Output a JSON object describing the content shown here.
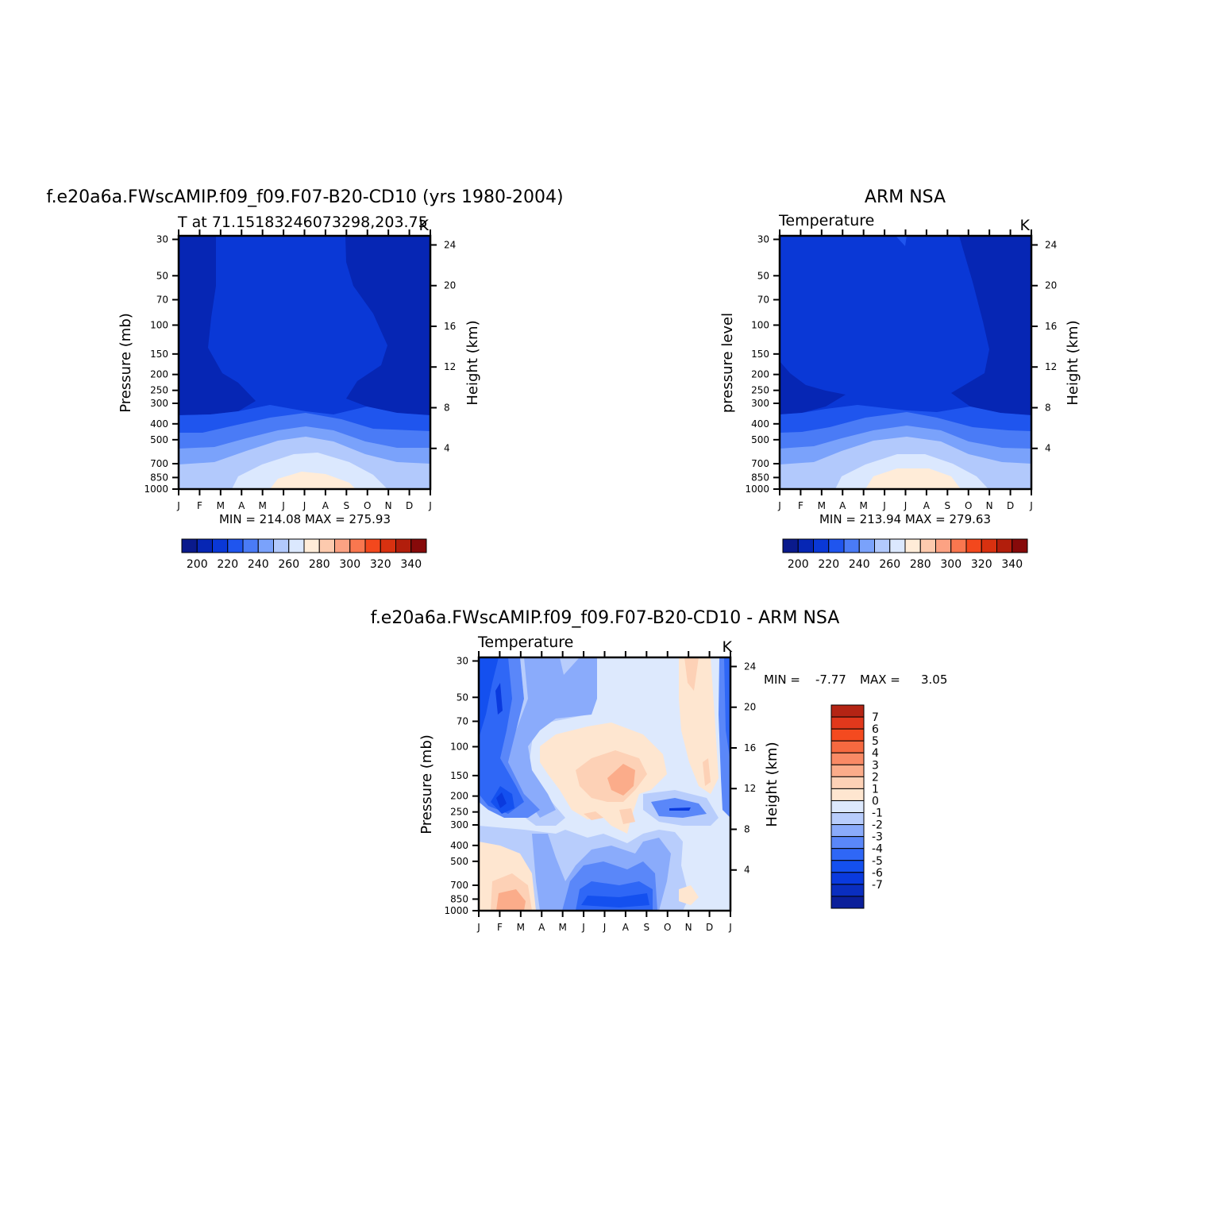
{
  "palette": {
    "abs": [
      "#0a1a8c",
      "#0626b4",
      "#0a38d6",
      "#1f55ee",
      "#4a7bf6",
      "#7aa2fb",
      "#b2c9fc",
      "#dbe8fe",
      "#ffecd8",
      "#fdcaae",
      "#fca283",
      "#f9774f",
      "#f3481d",
      "#d83110",
      "#b21e0c",
      "#870a0a"
    ],
    "diff": [
      "#0b1f9a",
      "#0a2ec0",
      "#0a3ade",
      "#1450ef",
      "#2f67f6",
      "#5a87f9",
      "#8aabfb",
      "#b8cdfc",
      "#dde9fd",
      "#fee6d0",
      "#fdd1b6",
      "#fbac8a",
      "#f98a65",
      "#f66940",
      "#f44a1f",
      "#e1381c",
      "#b42414",
      "#8b0c0c"
    ]
  },
  "panels": {
    "model": {
      "title": "f.e20a6a.FWscAMIP.f09_f09.F07-B20-CD10 (yrs 1980-2004)",
      "subtitle": "T at 71.15183246073298,203.75",
      "units": "K",
      "ylabel_left": "Pressure (mb)",
      "ylabel_right": "Height (km)",
      "minmax": "MIN = 214.08 MAX = 275.93",
      "colorbar_labels": [
        "200",
        "220",
        "240",
        "260",
        "280",
        "300",
        "320",
        "340"
      ]
    },
    "obs": {
      "title": "ARM NSA",
      "subtitle": "Temperature",
      "units": "K",
      "ylabel_left": "pressure level",
      "ylabel_right": "Height (km)",
      "minmax": "MIN = 213.94 MAX = 279.63",
      "colorbar_labels": [
        "200",
        "220",
        "240",
        "260",
        "280",
        "300",
        "320",
        "340"
      ]
    },
    "diff": {
      "title": "f.e20a6a.FWscAMIP.f09_f09.F07-B20-CD10 - ARM NSA",
      "subtitle": "Temperature",
      "units": "K",
      "ylabel_left": "Pressure (mb)",
      "ylabel_right": "Height (km)",
      "min_label": "MIN =",
      "min_value": "-7.77",
      "max_label": "MAX =",
      "max_value": "3.05",
      "colorbar_labels": [
        "7",
        "6",
        "5",
        "4",
        "3",
        "2",
        "1",
        "0",
        "-1",
        "-2",
        "-3",
        "-4",
        "-5",
        "-6",
        "-7"
      ]
    }
  },
  "chart_data": [
    {
      "type": "heatmap",
      "title": "f.e20a6a.FWscAMIP.f09_f09.F07-B20-CD10 (yrs 1980-2004)",
      "subtitle": "T at 71.15183246073298,203.75",
      "units": "K",
      "xlabel": "",
      "ylabel": "Pressure (mb)",
      "ylabel_right": "Height (km)",
      "x_ticks": [
        "J",
        "F",
        "M",
        "A",
        "M",
        "J",
        "J",
        "A",
        "S",
        "O",
        "N",
        "D",
        "J"
      ],
      "y_ticks": [
        30,
        50,
        70,
        100,
        150,
        200,
        250,
        300,
        400,
        500,
        700,
        850,
        1000
      ],
      "y_right_ticks": [
        24,
        20,
        16,
        12,
        8,
        4
      ],
      "y_scale": "log",
      "min": 214.08,
      "max": 275.93,
      "levels": [
        200,
        210,
        220,
        230,
        240,
        250,
        260,
        270,
        280,
        290,
        300,
        310,
        320,
        330,
        340
      ]
    },
    {
      "type": "heatmap",
      "title": "ARM NSA",
      "subtitle": "Temperature",
      "units": "K",
      "xlabel": "",
      "ylabel": "pressure level",
      "ylabel_right": "Height (km)",
      "x_ticks": [
        "J",
        "F",
        "M",
        "A",
        "M",
        "J",
        "J",
        "A",
        "S",
        "O",
        "N",
        "D",
        "J"
      ],
      "y_ticks": [
        30,
        50,
        70,
        100,
        150,
        200,
        250,
        300,
        400,
        500,
        700,
        850,
        1000
      ],
      "y_right_ticks": [
        24,
        20,
        16,
        12,
        8,
        4
      ],
      "y_scale": "log",
      "min": 213.94,
      "max": 279.63,
      "levels": [
        200,
        210,
        220,
        230,
        240,
        250,
        260,
        270,
        280,
        290,
        300,
        310,
        320,
        330,
        340
      ]
    },
    {
      "type": "heatmap",
      "title": "f.e20a6a.FWscAMIP.f09_f09.F07-B20-CD10 - ARM NSA",
      "subtitle": "Temperature",
      "units": "K",
      "xlabel": "",
      "ylabel": "Pressure (mb)",
      "ylabel_right": "Height (km)",
      "x_ticks": [
        "J",
        "F",
        "M",
        "A",
        "M",
        "J",
        "J",
        "A",
        "S",
        "O",
        "N",
        "D",
        "J"
      ],
      "y_ticks": [
        30,
        50,
        70,
        100,
        150,
        200,
        250,
        300,
        400,
        500,
        700,
        850,
        1000
      ],
      "y_right_ticks": [
        24,
        20,
        16,
        12,
        8,
        4
      ],
      "y_scale": "log",
      "min": -7.77,
      "max": 3.05,
      "levels": [
        -7,
        -6,
        -5,
        -4,
        -3,
        -2,
        -1,
        0,
        1,
        2,
        3,
        4,
        5,
        6,
        7
      ]
    }
  ]
}
